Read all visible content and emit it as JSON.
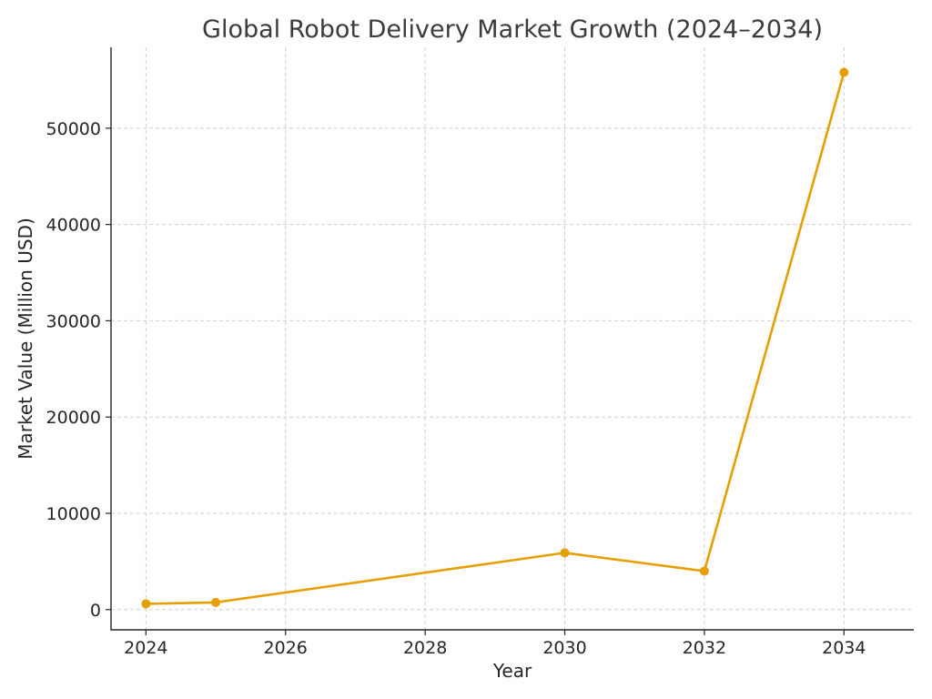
{
  "chart_data": {
    "type": "line",
    "title": "Global Robot Delivery Market Growth (2024–2034)",
    "xlabel": "Year",
    "ylabel": "Market Value (Million USD)",
    "xlim": [
      2023.5,
      2035.0
    ],
    "ylim": [
      -2100,
      58400
    ],
    "xticks": [
      2024,
      2026,
      2028,
      2030,
      2032,
      2034
    ],
    "xtick_labels": [
      "2024",
      "2026",
      "2028",
      "2030",
      "2032",
      "2034"
    ],
    "yticks": [
      0,
      10000,
      20000,
      30000,
      40000,
      50000
    ],
    "ytick_labels": [
      "0",
      "10000",
      "20000",
      "30000",
      "40000",
      "50000"
    ],
    "grid": true,
    "series": [
      {
        "color": "#E69F00",
        "x": [
          2024,
          2025,
          2030,
          2032,
          2034
        ],
        "y": [
          600,
          750,
          5900,
          4000,
          55800
        ]
      }
    ]
  }
}
